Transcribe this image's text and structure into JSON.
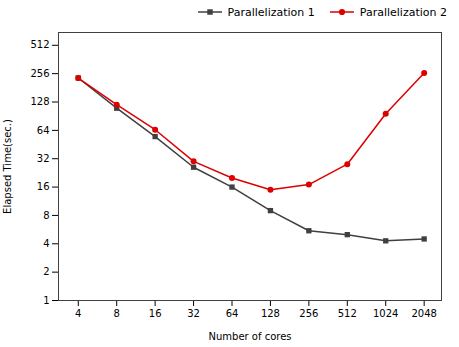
{
  "chart_data": {
    "type": "line",
    "xlabel": "Number of cores",
    "ylabel": "Elapsed Time(sec.)",
    "x": [
      4,
      8,
      16,
      32,
      64,
      128,
      256,
      512,
      1024,
      2048
    ],
    "series": [
      {
        "name": "Parallelization 1",
        "color": "#404040",
        "marker": "square",
        "values": [
          230,
          110,
          55,
          26,
          16,
          9,
          5.5,
          5.0,
          4.3,
          4.5
        ]
      },
      {
        "name": "Parallelization 2",
        "color": "#dd0000",
        "marker": "circle",
        "values": [
          230,
          120,
          65,
          30,
          20,
          15,
          17,
          28,
          96,
          260
        ]
      }
    ],
    "xlim": [
      2.8,
      2800
    ],
    "ylim": [
      1,
      700
    ],
    "xticks": [
      4,
      8,
      16,
      32,
      64,
      128,
      256,
      512,
      1024,
      2048
    ],
    "yticks": [
      1,
      2,
      4,
      8,
      16,
      32,
      64,
      128,
      256,
      512
    ],
    "log": true,
    "grid": false,
    "legend": "upper right"
  }
}
